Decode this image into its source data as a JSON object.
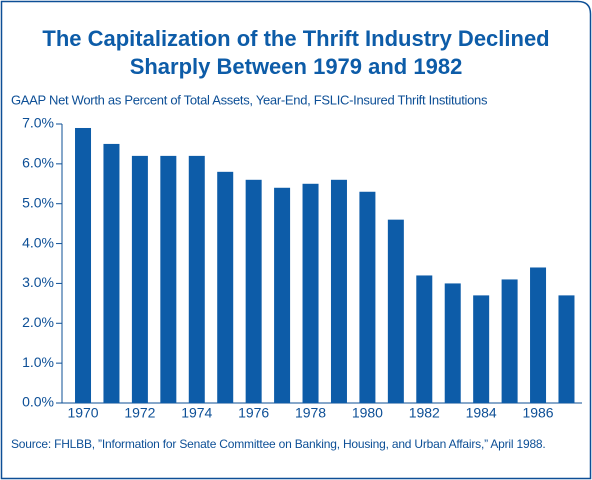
{
  "chart_data": {
    "type": "bar",
    "title": [
      "The Capitalization of the Thrift Industry Declined",
      "Sharply Between 1979 and 1982"
    ],
    "subtitle": "GAAP Net Worth as Percent of Total Assets, Year-End, FSLIC-Insured Thrift Institutions",
    "categories": [
      "1970",
      null,
      "1972",
      null,
      "1974",
      null,
      "1976",
      null,
      "1978",
      null,
      "1980",
      null,
      "1982",
      null,
      "1984",
      null,
      "1986",
      null
    ],
    "values": [
      6.9,
      6.5,
      6.2,
      6.2,
      6.2,
      5.8,
      5.6,
      5.4,
      5.5,
      5.6,
      5.3,
      4.6,
      3.2,
      3.0,
      2.7,
      3.1,
      3.4,
      2.7
    ],
    "color": "#0d5ca8",
    "ylim": [
      0,
      7
    ],
    "yticks": [
      {
        "value": 0,
        "label": "0.0%"
      },
      {
        "value": 1,
        "label": "1.0%"
      },
      {
        "value": 2,
        "label": "2.0%"
      },
      {
        "value": 3,
        "label": "3.0%"
      },
      {
        "value": 4,
        "label": "4.0%"
      },
      {
        "value": 5,
        "label": "5.0%"
      },
      {
        "value": 6,
        "label": "6.0%"
      },
      {
        "value": 7,
        "label": "7.0%"
      }
    ],
    "grid": false,
    "source": "Source: FHLBB, ”Information for Senate Committee on Banking, Housing, and Urban Affairs,” April 1988."
  }
}
